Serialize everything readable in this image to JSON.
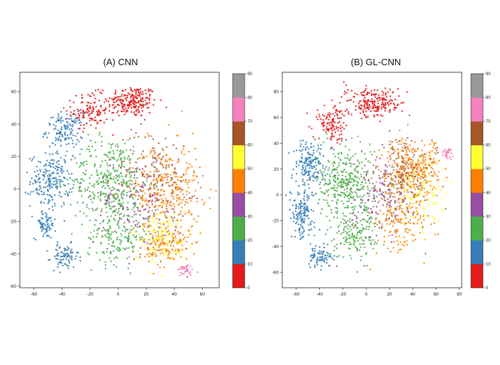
{
  "palette": [
    "#e41a1c",
    "#377eb8",
    "#4daf4a",
    "#984ea3",
    "#ff7f00",
    "#ffff33",
    "#a65628",
    "#f781bf",
    "#999999"
  ],
  "chart_data": [
    {
      "type": "scatter",
      "title": "(A) CNN",
      "xlabel": "",
      "ylabel": "",
      "xlim": [
        -70,
        72
      ],
      "ylim": [
        -61,
        72
      ],
      "xticks": [
        "-60",
        "-40",
        "-20",
        "0",
        "20",
        "40",
        "60"
      ],
      "xtick_values": [
        -60,
        -40,
        -20,
        0,
        20,
        40,
        60
      ],
      "yticks": [
        "-60",
        "-40",
        "-20",
        "0",
        "20",
        "40",
        "60"
      ],
      "ytick_values": [
        -60,
        -40,
        -20,
        0,
        20,
        40,
        60
      ],
      "colorbar": {
        "range": [
          0,
          90
        ],
        "ticks": [
          "0",
          "10",
          "20",
          "30",
          "40",
          "50",
          "60",
          "70",
          "80",
          "90"
        ]
      },
      "grid": false,
      "clusters": [
        {
          "class": 0,
          "color": "#e41a1c",
          "cx": 10,
          "cy": 54,
          "rx": 16,
          "ry": 9,
          "n": 220
        },
        {
          "class": 0,
          "color": "#e41a1c",
          "cx": -20,
          "cy": 48,
          "rx": 12,
          "ry": 10,
          "n": 120
        },
        {
          "class": 1,
          "color": "#377eb8",
          "cx": -38,
          "cy": 36,
          "rx": 12,
          "ry": 10,
          "n": 140
        },
        {
          "class": 1,
          "color": "#377eb8",
          "cx": -48,
          "cy": 5,
          "rx": 13,
          "ry": 15,
          "n": 210
        },
        {
          "class": 1,
          "color": "#377eb8",
          "cx": -52,
          "cy": -22,
          "rx": 7,
          "ry": 8,
          "n": 70
        },
        {
          "class": 1,
          "color": "#377eb8",
          "cx": -38,
          "cy": -42,
          "rx": 9,
          "ry": 7,
          "n": 80
        },
        {
          "class": 2,
          "color": "#4daf4a",
          "cx": -5,
          "cy": 5,
          "rx": 25,
          "ry": 25,
          "n": 380
        },
        {
          "class": 2,
          "color": "#4daf4a",
          "cx": 0,
          "cy": -30,
          "rx": 20,
          "ry": 15,
          "n": 160
        },
        {
          "class": 3,
          "color": "#984ea3",
          "cx": 15,
          "cy": -10,
          "rx": 30,
          "ry": 28,
          "n": 150
        },
        {
          "class": 4,
          "color": "#ff7f00",
          "cx": 35,
          "cy": 0,
          "rx": 22,
          "ry": 25,
          "n": 300
        },
        {
          "class": 4,
          "color": "#ff7f00",
          "cx": 35,
          "cy": -35,
          "rx": 15,
          "ry": 12,
          "n": 150
        },
        {
          "class": 5,
          "color": "#ffff33",
          "cx": 30,
          "cy": -30,
          "rx": 20,
          "ry": 15,
          "n": 130
        },
        {
          "class": 6,
          "color": "#a65628",
          "cx": 25,
          "cy": 10,
          "rx": 25,
          "ry": 25,
          "n": 120
        },
        {
          "class": 7,
          "color": "#f781bf",
          "cx": 48,
          "cy": -50,
          "rx": 6,
          "ry": 3,
          "n": 35
        },
        {
          "class": 8,
          "color": "#999999",
          "cx": 20,
          "cy": 0,
          "rx": 35,
          "ry": 30,
          "n": 60
        }
      ]
    },
    {
      "type": "scatter",
      "title": "(B) GL-CNN",
      "xlabel": "",
      "ylabel": "",
      "xlim": [
        -72,
        82
      ],
      "ylim": [
        -72,
        95
      ],
      "xticks": [
        "-60",
        "-40",
        "-20",
        "0",
        "20",
        "40",
        "60",
        "80"
      ],
      "xtick_values": [
        -60,
        -40,
        -20,
        0,
        20,
        40,
        60,
        80
      ],
      "yticks": [
        "-60",
        "-40",
        "-20",
        "0",
        "20",
        "40",
        "60",
        "80"
      ],
      "ytick_values": [
        -60,
        -40,
        -20,
        0,
        20,
        40,
        60,
        80
      ],
      "colorbar": {
        "range": [
          0,
          90
        ],
        "ticks": [
          "0",
          "10",
          "20",
          "30",
          "40",
          "50",
          "60",
          "70",
          "80",
          "90"
        ]
      },
      "grid": false,
      "clusters": [
        {
          "class": 0,
          "color": "#e41a1c",
          "cx": 5,
          "cy": 72,
          "rx": 22,
          "ry": 10,
          "n": 220
        },
        {
          "class": 0,
          "color": "#e41a1c",
          "cx": -30,
          "cy": 55,
          "rx": 12,
          "ry": 12,
          "n": 110
        },
        {
          "class": 1,
          "color": "#377eb8",
          "cx": -48,
          "cy": 25,
          "rx": 12,
          "ry": 18,
          "n": 170
        },
        {
          "class": 1,
          "color": "#377eb8",
          "cx": -55,
          "cy": -15,
          "rx": 10,
          "ry": 18,
          "n": 150
        },
        {
          "class": 1,
          "color": "#377eb8",
          "cx": -38,
          "cy": -48,
          "rx": 10,
          "ry": 7,
          "n": 80
        },
        {
          "class": 2,
          "color": "#4daf4a",
          "cx": -18,
          "cy": 10,
          "rx": 20,
          "ry": 25,
          "n": 330
        },
        {
          "class": 2,
          "color": "#4daf4a",
          "cx": -10,
          "cy": -30,
          "rx": 18,
          "ry": 18,
          "n": 170
        },
        {
          "class": 3,
          "color": "#984ea3",
          "cx": 15,
          "cy": 0,
          "rx": 30,
          "ry": 30,
          "n": 160
        },
        {
          "class": 4,
          "color": "#ff7f00",
          "cx": 40,
          "cy": 20,
          "rx": 22,
          "ry": 20,
          "n": 300
        },
        {
          "class": 4,
          "color": "#ff7f00",
          "cx": 30,
          "cy": -20,
          "rx": 20,
          "ry": 20,
          "n": 160
        },
        {
          "class": 5,
          "color": "#ffff33",
          "cx": 45,
          "cy": 0,
          "rx": 20,
          "ry": 25,
          "n": 130
        },
        {
          "class": 6,
          "color": "#a65628",
          "cx": 30,
          "cy": 15,
          "rx": 25,
          "ry": 25,
          "n": 120
        },
        {
          "class": 7,
          "color": "#f781bf",
          "cx": 70,
          "cy": 32,
          "rx": 4,
          "ry": 5,
          "n": 30
        },
        {
          "class": 8,
          "color": "#999999",
          "cx": 20,
          "cy": 10,
          "rx": 35,
          "ry": 35,
          "n": 60
        }
      ]
    }
  ]
}
